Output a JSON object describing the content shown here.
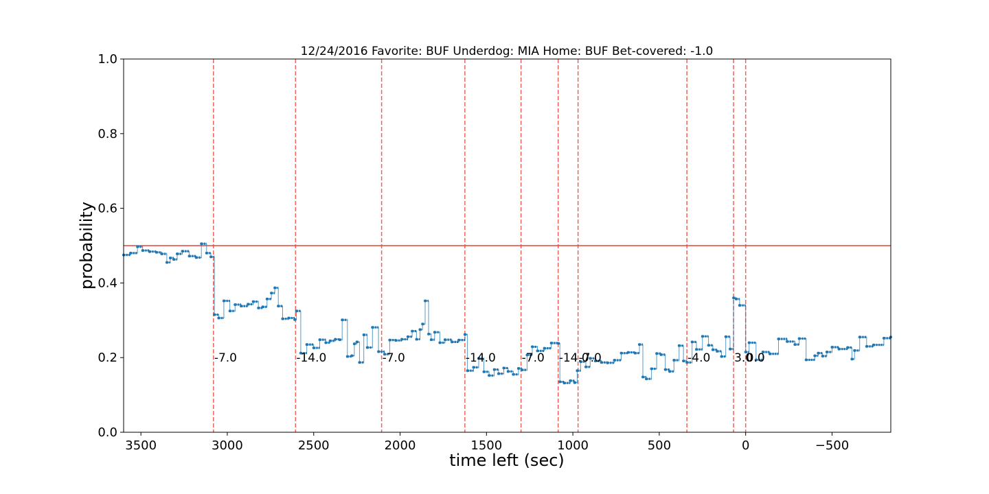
{
  "chart_data": {
    "type": "line",
    "title": "12/24/2016 Favorite: BUF Underdog: MIA Home: BUF Bet-covered: -1.0",
    "xlabel": "time left (sec)",
    "ylabel": "probability",
    "xlim": [
      3600,
      -840
    ],
    "ylim": [
      0.0,
      1.0
    ],
    "x_inverted": true,
    "grid": false,
    "x_ticks": [
      {
        "value": 3500,
        "label": "3500"
      },
      {
        "value": 3000,
        "label": "3000"
      },
      {
        "value": 2500,
        "label": "2500"
      },
      {
        "value": 2000,
        "label": "2000"
      },
      {
        "value": 1500,
        "label": "1500"
      },
      {
        "value": 1000,
        "label": "1000"
      },
      {
        "value": 500,
        "label": "500"
      },
      {
        "value": 0,
        "label": "0"
      },
      {
        "value": -500,
        "label": "−500"
      }
    ],
    "y_ticks": [
      {
        "value": 0.0,
        "label": "0.0"
      },
      {
        "value": 0.2,
        "label": "0.2"
      },
      {
        "value": 0.4,
        "label": "0.4"
      },
      {
        "value": 0.6,
        "label": "0.6"
      },
      {
        "value": 0.8,
        "label": "0.8"
      },
      {
        "value": 1.0,
        "label": "1.0"
      }
    ],
    "reference_line": {
      "y": 0.5,
      "color": "#e8413a"
    },
    "events": [
      {
        "x": 3080,
        "label": "-7.0"
      },
      {
        "x": 2605,
        "label": "-14.0"
      },
      {
        "x": 2107,
        "label": "-7.0"
      },
      {
        "x": 1625,
        "label": "-14.0"
      },
      {
        "x": 1300,
        "label": "-7.0"
      },
      {
        "x": 1085,
        "label": "-14.0"
      },
      {
        "x": 970,
        "label": "-7.0"
      },
      {
        "x": 340,
        "label": "-4.0"
      },
      {
        "x": 70,
        "label": "3.0"
      },
      {
        "x": 0,
        "label": "0.0"
      }
    ],
    "event_label_y": 0.2,
    "event_color": "#f0625a",
    "series_color": "#1f77b4",
    "series": [
      {
        "x": [
          3600,
          3560,
          3520,
          3490,
          3450,
          3410,
          3380,
          3350,
          3330,
          3310,
          3290,
          3260,
          3220,
          3180,
          3150,
          3120,
          3095,
          3075,
          3050,
          3020,
          2985,
          2955,
          2920,
          2880,
          2850,
          2820,
          2795,
          2770,
          2745,
          2725,
          2705,
          2680,
          2645,
          2610,
          2600,
          2575,
          2540,
          2500,
          2465,
          2430,
          2405,
          2375,
          2350,
          2335,
          2305,
          2280,
          2265,
          2250,
          2235,
          2210,
          2190,
          2160,
          2125,
          2090,
          2060,
          2025,
          1990,
          1955,
          1930,
          1905,
          1885,
          1870,
          1855,
          1835,
          1820,
          1800,
          1770,
          1740,
          1700,
          1660,
          1625,
          1610,
          1575,
          1545,
          1515,
          1485,
          1455,
          1430,
          1400,
          1375,
          1345,
          1315,
          1295,
          1265,
          1235,
          1205,
          1165,
          1125,
          1085,
          1075,
          1050,
          1015,
          990,
          975,
          955,
          925,
          900,
          870,
          835,
          800,
          760,
          720,
          680,
          640,
          615,
          595,
          575,
          545,
          515,
          490,
          465,
          440,
          415,
          385,
          360,
          340,
          310,
          285,
          250,
          215,
          190,
          165,
          140,
          115,
          90,
          70,
          55,
          35,
          0,
          -20,
          -60,
          -100,
          -140,
          -190,
          -240,
          -285,
          -310,
          -350,
          -400,
          -420,
          -445,
          -470,
          -500,
          -540,
          -590,
          -615,
          -630,
          -660,
          -700,
          -740,
          -800,
          -840
        ],
        "y": [
          0.475,
          0.48,
          0.497,
          0.487,
          0.484,
          0.482,
          0.478,
          0.455,
          0.467,
          0.463,
          0.478,
          0.485,
          0.472,
          0.468,
          0.505,
          0.48,
          0.47,
          0.315,
          0.306,
          0.352,
          0.325,
          0.342,
          0.338,
          0.343,
          0.35,
          0.333,
          0.336,
          0.357,
          0.373,
          0.387,
          0.338,
          0.304,
          0.306,
          0.302,
          0.325,
          0.212,
          0.235,
          0.226,
          0.248,
          0.24,
          0.245,
          0.249,
          0.248,
          0.301,
          0.203,
          0.205,
          0.237,
          0.242,
          0.187,
          0.261,
          0.227,
          0.281,
          0.216,
          0.209,
          0.247,
          0.246,
          0.249,
          0.256,
          0.271,
          0.249,
          0.275,
          0.29,
          0.352,
          0.263,
          0.248,
          0.268,
          0.24,
          0.248,
          0.242,
          0.247,
          0.262,
          0.165,
          0.174,
          0.198,
          0.162,
          0.152,
          0.168,
          0.157,
          0.172,
          0.163,
          0.155,
          0.171,
          0.167,
          0.207,
          0.229,
          0.218,
          0.225,
          0.239,
          0.238,
          0.135,
          0.132,
          0.138,
          0.133,
          0.165,
          0.189,
          0.175,
          0.198,
          0.191,
          0.187,
          0.186,
          0.193,
          0.212,
          0.214,
          0.212,
          0.235,
          0.148,
          0.143,
          0.17,
          0.211,
          0.208,
          0.168,
          0.163,
          0.193,
          0.232,
          0.191,
          0.187,
          0.242,
          0.222,
          0.257,
          0.233,
          0.221,
          0.217,
          0.203,
          0.256,
          0.223,
          0.36,
          0.357,
          0.34,
          0.215,
          0.24,
          0.194,
          0.215,
          0.21,
          0.25,
          0.243,
          0.235,
          0.251,
          0.194,
          0.205,
          0.212,
          0.204,
          0.215,
          0.228,
          0.223,
          0.227,
          0.196,
          0.219,
          0.255,
          0.23,
          0.234,
          0.252,
          0.255
        ]
      }
    ]
  }
}
